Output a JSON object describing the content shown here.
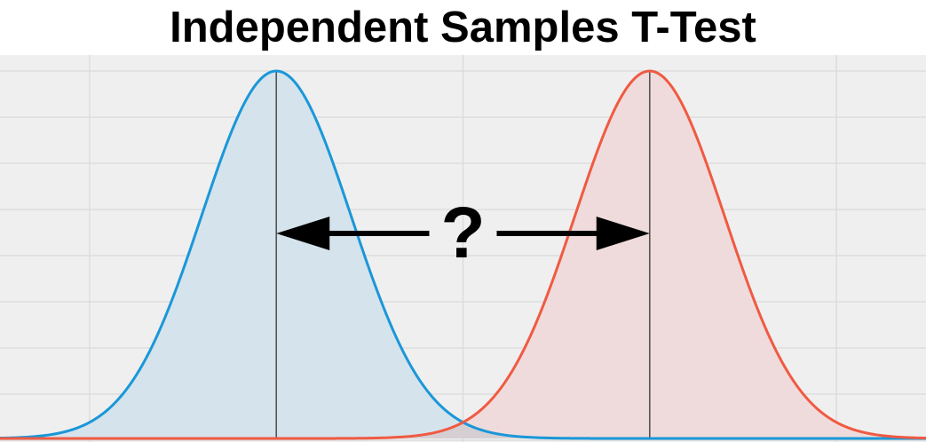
{
  "title": "Independent Samples T-Test",
  "question_mark": "?",
  "colors": {
    "plot_background": "#efefef",
    "grid": "#d9d9d9",
    "group_a_line": "#1a97d8",
    "group_a_fill": "#d5e3ec",
    "group_b_line": "#f05a42",
    "group_b_fill": "#efdbdb",
    "overlap_fill": "#d5cfd4",
    "mean_line": "#555555",
    "arrow": "#000000"
  },
  "distributions": [
    {
      "name": "",
      "mean": -1,
      "sd": 0.4,
      "color_key": "group_a"
    },
    {
      "name": "",
      "mean": 1,
      "sd": 0.4,
      "color_key": "group_b"
    }
  ],
  "x_range": [
    -2.48,
    2.48
  ],
  "grid_x_values": [
    -2,
    0,
    2
  ]
}
